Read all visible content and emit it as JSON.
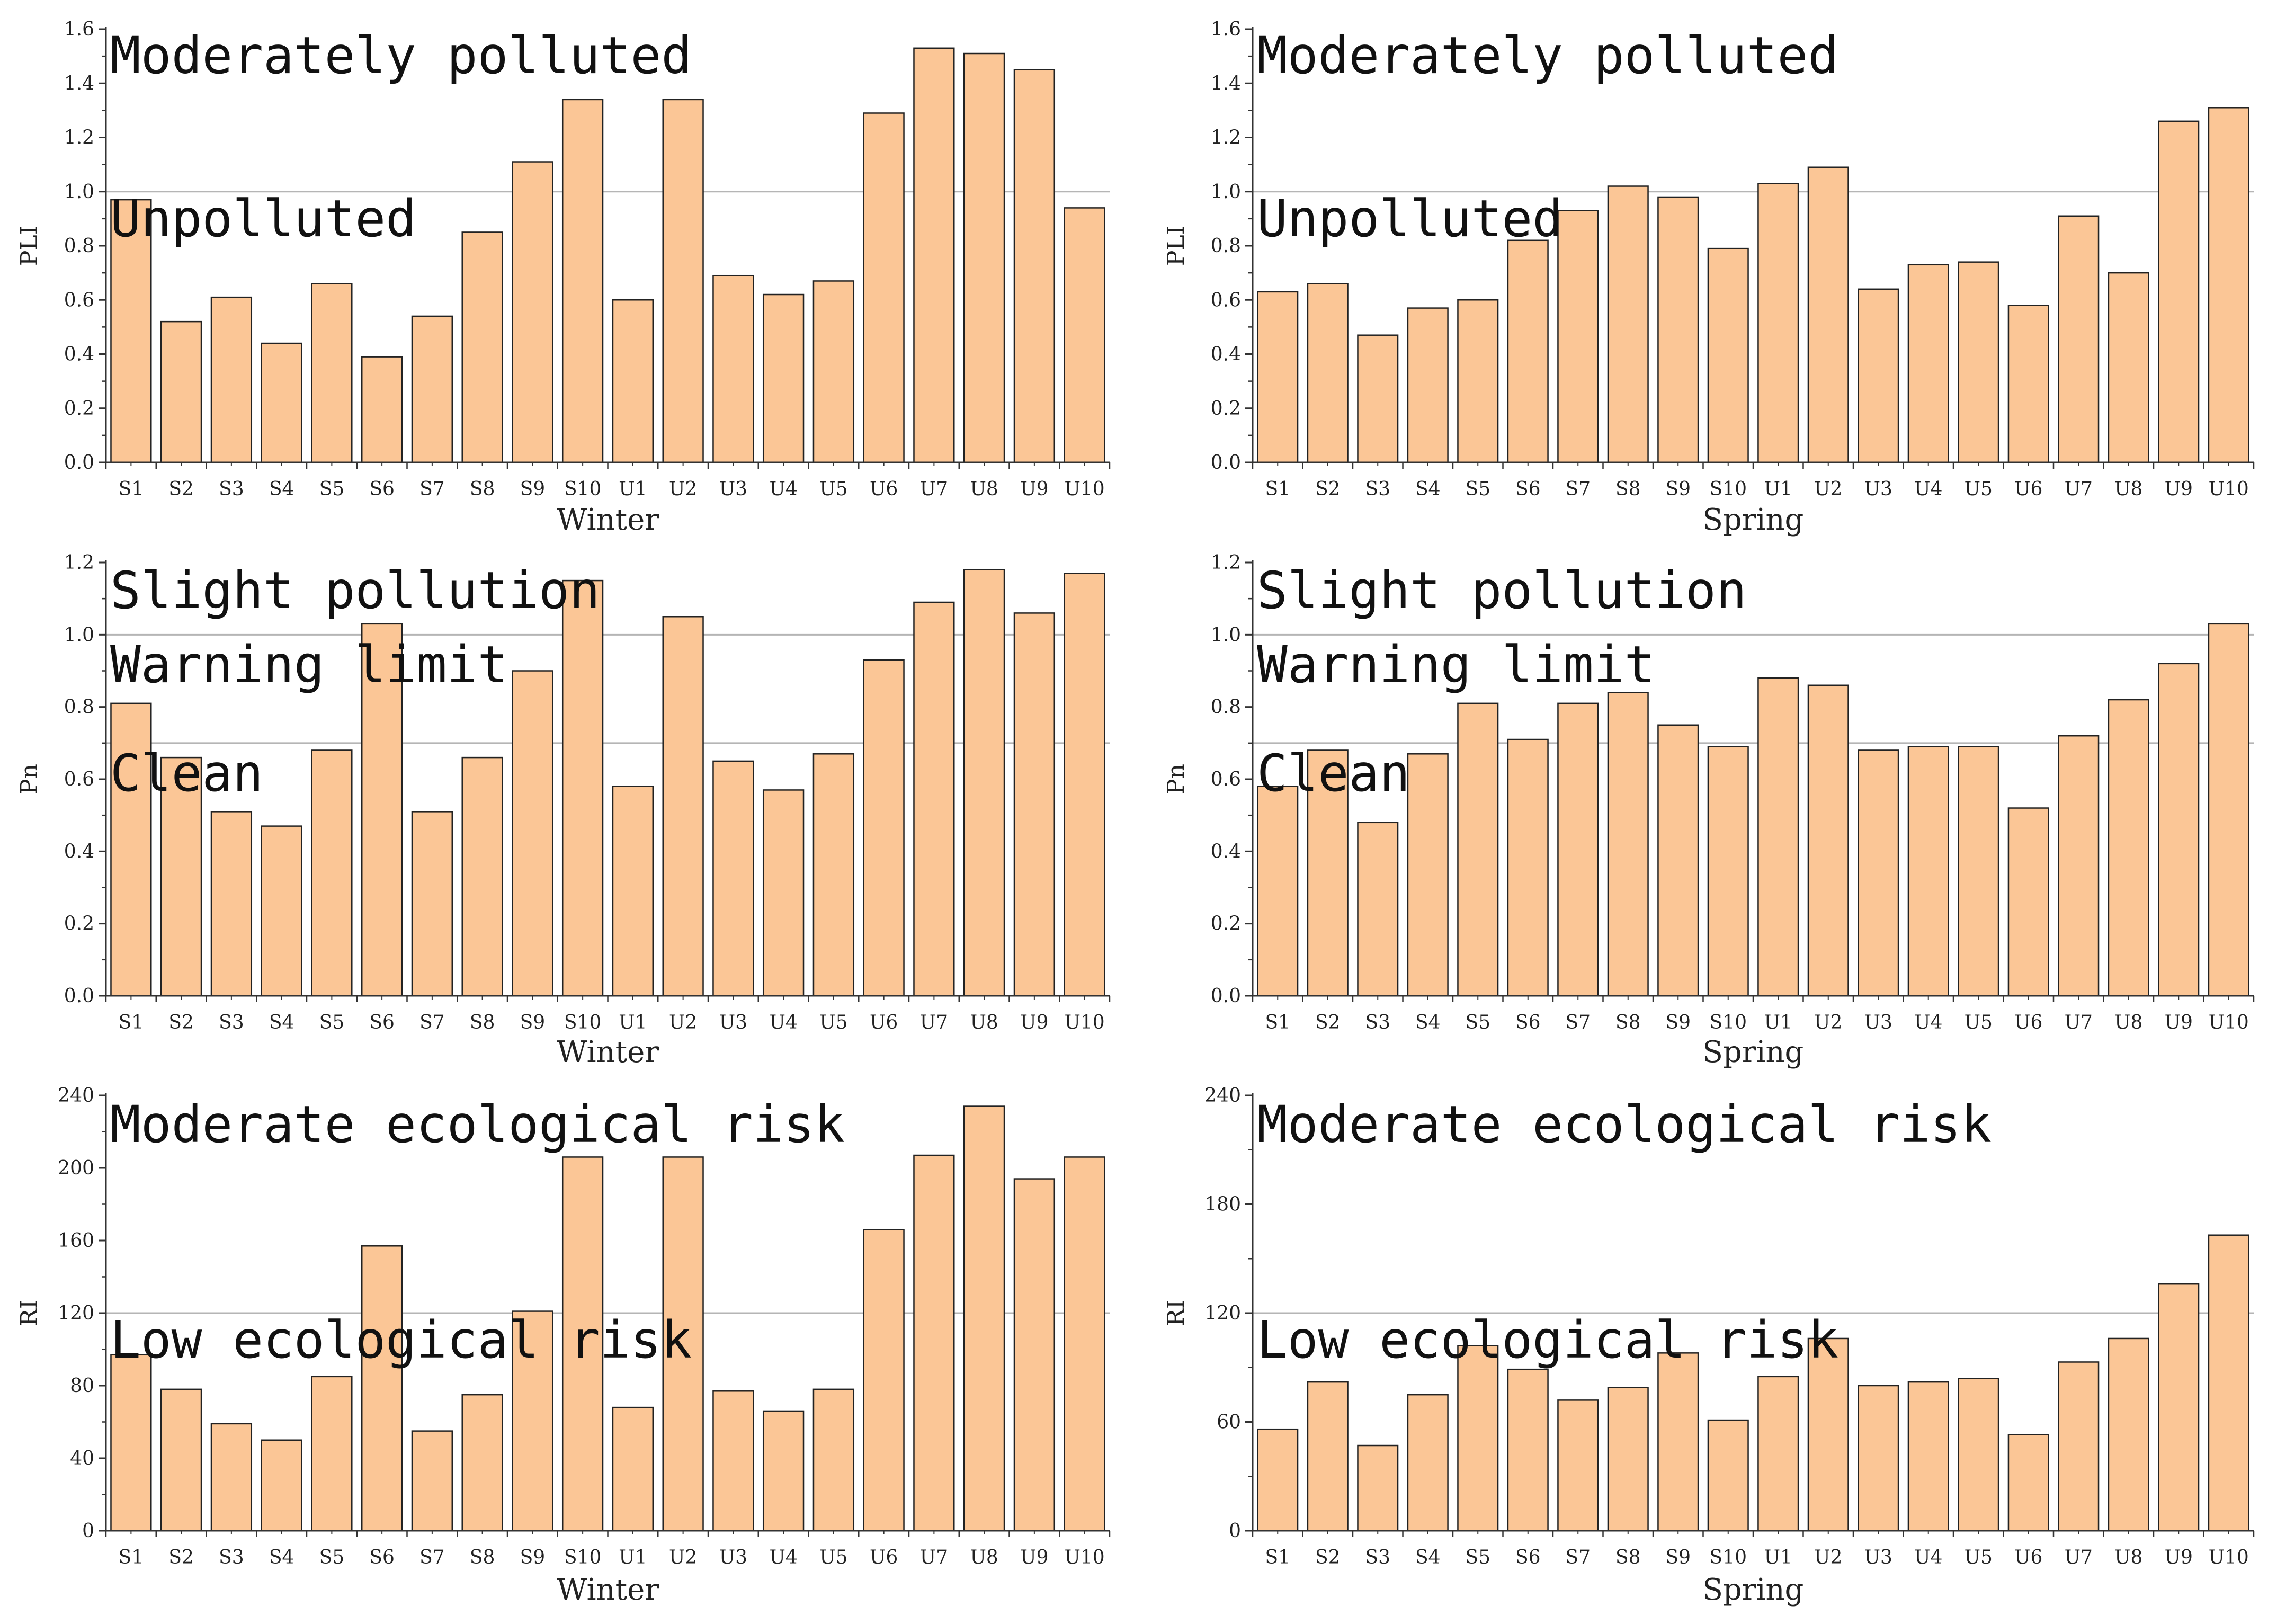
{
  "colors": {
    "bar_fill": "#fbc696",
    "bar_stroke": "#222222",
    "axis": "#333333",
    "ref_line": "#b5b5b5"
  },
  "chart_data": [
    {
      "type": "bar",
      "panel": "top-left",
      "categories": [
        "S1",
        "S2",
        "S3",
        "S4",
        "S5",
        "S6",
        "S7",
        "S8",
        "S9",
        "S10",
        "U1",
        "U2",
        "U3",
        "U4",
        "U5",
        "U6",
        "U7",
        "U8",
        "U9",
        "U10"
      ],
      "values": [
        0.97,
        0.52,
        0.61,
        0.44,
        0.66,
        0.39,
        0.54,
        0.85,
        1.11,
        1.34,
        0.6,
        1.34,
        0.69,
        0.62,
        0.67,
        1.29,
        1.53,
        1.51,
        1.45,
        0.94
      ],
      "xlabel": "Winter",
      "ylabel": "PLI",
      "ylim": [
        0,
        1.6
      ],
      "yticks": [
        "0.0",
        "0.2",
        "0.4",
        "0.6",
        "0.8",
        "1.0",
        "1.2",
        "1.4",
        "1.6"
      ],
      "ref_lines": [
        1.0
      ],
      "annotations": [
        "Moderately polluted",
        "Unpolluted"
      ]
    },
    {
      "type": "bar",
      "panel": "top-right",
      "categories": [
        "S1",
        "S2",
        "S3",
        "S4",
        "S5",
        "S6",
        "S7",
        "S8",
        "S9",
        "S10",
        "U1",
        "U2",
        "U3",
        "U4",
        "U5",
        "U6",
        "U7",
        "U8",
        "U9",
        "U10"
      ],
      "values": [
        0.63,
        0.66,
        0.47,
        0.57,
        0.6,
        0.82,
        0.93,
        1.02,
        0.98,
        0.79,
        1.03,
        1.09,
        0.64,
        0.73,
        0.74,
        0.58,
        0.91,
        0.7,
        1.26,
        1.31
      ],
      "xlabel": "Spring",
      "ylabel": "PLI",
      "ylim": [
        0,
        1.6
      ],
      "yticks": [
        "0.0",
        "0.2",
        "0.4",
        "0.6",
        "0.8",
        "1.0",
        "1.2",
        "1.4",
        "1.6"
      ],
      "ref_lines": [
        1.0
      ],
      "annotations": [
        "Moderately polluted",
        "Unpolluted"
      ]
    },
    {
      "type": "bar",
      "panel": "middle-left",
      "categories": [
        "S1",
        "S2",
        "S3",
        "S4",
        "S5",
        "S6",
        "S7",
        "S8",
        "S9",
        "S10",
        "U1",
        "U2",
        "U3",
        "U4",
        "U5",
        "U6",
        "U7",
        "U8",
        "U9",
        "U10"
      ],
      "values": [
        0.81,
        0.66,
        0.51,
        0.47,
        0.68,
        1.03,
        0.51,
        0.66,
        0.9,
        1.15,
        0.58,
        1.05,
        0.65,
        0.57,
        0.67,
        0.93,
        1.09,
        1.18,
        1.06,
        1.17
      ],
      "xlabel": "Winter",
      "ylabel": "Pn",
      "ylim": [
        0,
        1.2
      ],
      "yticks": [
        "0.0",
        "0.2",
        "0.4",
        "0.6",
        "0.8",
        "1.0",
        "1.2"
      ],
      "ref_lines": [
        1.0,
        0.7
      ],
      "annotations": [
        "Slight pollution",
        "Warning limit",
        "Clean"
      ]
    },
    {
      "type": "bar",
      "panel": "middle-right",
      "categories": [
        "S1",
        "S2",
        "S3",
        "S4",
        "S5",
        "S6",
        "S7",
        "S8",
        "S9",
        "S10",
        "U1",
        "U2",
        "U3",
        "U4",
        "U5",
        "U6",
        "U7",
        "U8",
        "U9",
        "U10"
      ],
      "values": [
        0.58,
        0.68,
        0.48,
        0.67,
        0.81,
        0.71,
        0.81,
        0.84,
        0.75,
        0.69,
        0.88,
        0.86,
        0.68,
        0.69,
        0.69,
        0.52,
        0.72,
        0.82,
        0.92,
        1.03
      ],
      "xlabel": "Spring",
      "ylabel": "Pn",
      "ylim": [
        0,
        1.2
      ],
      "yticks": [
        "0.0",
        "0.2",
        "0.4",
        "0.6",
        "0.8",
        "1.0",
        "1.2"
      ],
      "ref_lines": [
        1.0,
        0.7
      ],
      "annotations": [
        "Slight pollution",
        "Warning limit",
        "Clean"
      ]
    },
    {
      "type": "bar",
      "panel": "bottom-left",
      "categories": [
        "S1",
        "S2",
        "S3",
        "S4",
        "S5",
        "S6",
        "S7",
        "S8",
        "S9",
        "S10",
        "U1",
        "U2",
        "U3",
        "U4",
        "U5",
        "U6",
        "U7",
        "U8",
        "U9",
        "U10"
      ],
      "values": [
        97,
        78,
        59,
        50,
        85,
        157,
        55,
        75,
        121,
        206,
        68,
        206,
        77,
        66,
        78,
        166,
        207,
        234,
        194,
        206
      ],
      "xlabel": "Winter",
      "ylabel": "RI",
      "ylim": [
        0,
        240
      ],
      "yticks": [
        "0",
        "40",
        "80",
        "120",
        "160",
        "200",
        "240"
      ],
      "ref_lines": [
        120
      ],
      "annotations": [
        "Moderate ecological risk",
        "Low ecological risk"
      ]
    },
    {
      "type": "bar",
      "panel": "bottom-right",
      "categories": [
        "S1",
        "S2",
        "S3",
        "S4",
        "S5",
        "S6",
        "S7",
        "S8",
        "S9",
        "S10",
        "U1",
        "U2",
        "U3",
        "U4",
        "U5",
        "U6",
        "U7",
        "U8",
        "U9",
        "U10"
      ],
      "values": [
        56,
        82,
        47,
        75,
        102,
        89,
        72,
        79,
        98,
        61,
        85,
        106,
        80,
        82,
        84,
        53,
        93,
        106,
        136,
        163
      ],
      "xlabel": "Spring",
      "ylabel": "RI",
      "ylim": [
        0,
        240
      ],
      "yticks": [
        "0",
        "60",
        "120",
        "180",
        "240"
      ],
      "ref_lines": [
        120
      ],
      "annotations": [
        "Moderate ecological risk",
        "Low ecological risk"
      ]
    }
  ]
}
